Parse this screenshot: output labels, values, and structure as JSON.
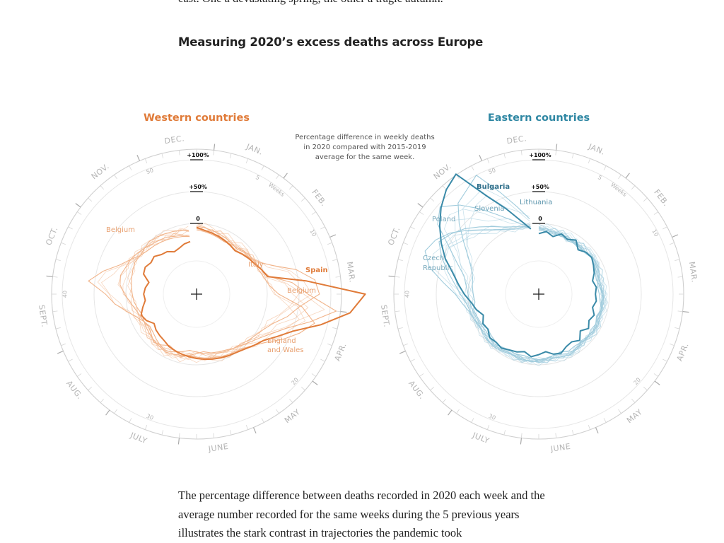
{
  "article": {
    "intro_fragment": "east. One a devastating spring, the other a tragic autumn.",
    "graphic_title": "Measuring 2020’s excess deaths across Europe",
    "body_text": "The percentage difference between deaths recorded in 2020 each week and the average number recorded for the same weeks during the 5 previous years illustrates the stark contrast in trajectories the pandemic took"
  },
  "colors": {
    "western": "#e07b39",
    "western_light": "#f1b48a",
    "eastern": "#3a8aa8",
    "eastern_light": "#9fcbdc",
    "grid": "#e6e6e6",
    "axis_ring": "#cfcfcf"
  },
  "chart_data": [
    {
      "type": "radial-line",
      "panel": "western",
      "title": "Western countries",
      "note": [
        "Percentage difference in weekly deaths",
        "in 2020 compared with 2015-2019",
        "average for the same week."
      ],
      "reference_rings": [
        {
          "value": 0,
          "label": "0"
        },
        {
          "value": 50,
          "label": "+50%"
        },
        {
          "value": 100,
          "label": "+100%"
        }
      ],
      "radial_scale": {
        "min": -100,
        "max": 150
      },
      "week_ticks": [
        5,
        10,
        20,
        30,
        40,
        50
      ],
      "month_labels": [
        "JAN.",
        "FEB.",
        "MAR.",
        "APR.",
        "MAY",
        "JUNE",
        "JULY",
        "AUG.",
        "SEPT.",
        "OCT.",
        "NOV.",
        "DEC."
      ],
      "week_axis_label": "Weeks",
      "x_label": "",
      "y_label": "",
      "highlighted": [
        {
          "name": "Spain",
          "values": [
            -6,
            -10,
            -12,
            -14,
            -16,
            -18,
            -20,
            -16,
            -12,
            -8,
            -2,
            4,
            62,
            154,
            132,
            90,
            52,
            32,
            17,
            10,
            4,
            0,
            -2,
            -4,
            -6,
            -8,
            -10,
            -12,
            -14,
            -16,
            -18,
            -22,
            -24,
            -26,
            -30,
            -22,
            -18,
            -24,
            -30,
            -28,
            -30,
            -34,
            -22,
            -20,
            -24,
            -22,
            -28,
            -30,
            -36,
            -34,
            -30,
            -28
          ]
        }
      ],
      "series": [
        {
          "name": "Italy",
          "values": [
            -8,
            -10,
            -12,
            -13,
            -15,
            -17,
            -19,
            -15,
            -10,
            -2,
            16,
            50,
            76,
            82,
            52,
            36,
            18,
            8,
            2,
            -2,
            -6,
            -8,
            -10,
            -12,
            -14,
            -17,
            -20,
            -22,
            -18,
            -14,
            -10,
            -12,
            -16,
            -20,
            -22,
            -18,
            -16,
            -12,
            -6,
            2,
            10,
            12,
            8,
            6,
            2,
            -2,
            -6,
            -8,
            -10,
            -14,
            -16,
            -18
          ]
        },
        {
          "name": "Belgium",
          "values": [
            -10,
            -12,
            -14,
            -16,
            -18,
            -16,
            -14,
            -10,
            -8,
            -6,
            -2,
            6,
            40,
            64,
            110,
            72,
            40,
            22,
            10,
            2,
            -4,
            -8,
            -12,
            -14,
            -16,
            -20,
            -18,
            -14,
            -10,
            -16,
            -20,
            -14,
            -10,
            -16,
            -20,
            -18,
            -10,
            2,
            18,
            32,
            60,
            40,
            18,
            6,
            -4,
            -8,
            -10,
            -12,
            -14,
            -16,
            -18,
            -20
          ]
        },
        {
          "name": "England and Wales",
          "values": [
            -4,
            -6,
            -8,
            -10,
            -12,
            -14,
            -16,
            -12,
            -10,
            -8,
            -6,
            -2,
            4,
            18,
            56,
            80,
            62,
            42,
            22,
            10,
            2,
            -2,
            -4,
            -6,
            -8,
            -10,
            -12,
            -14,
            -12,
            -10,
            -8,
            -10,
            -12,
            -14,
            -16,
            -18,
            -20,
            -16,
            -12,
            -10,
            -8,
            -6,
            -4,
            -2,
            -4,
            -2,
            0,
            -2,
            -4,
            -6,
            -8,
            -10
          ]
        }
      ],
      "annotations": [
        {
          "text": "Spain",
          "bold": true
        },
        {
          "text": "Italy"
        },
        {
          "text": "Belgium"
        },
        {
          "text": "Belgium"
        },
        {
          "text": "England"
        },
        {
          "text": "and Wales"
        }
      ]
    },
    {
      "type": "radial-line",
      "panel": "eastern",
      "title": "Eastern countries",
      "reference_rings": [
        {
          "value": 0,
          "label": "0"
        },
        {
          "value": 50,
          "label": "+50%"
        },
        {
          "value": 100,
          "label": "+100%"
        }
      ],
      "radial_scale": {
        "min": -100,
        "max": 150
      },
      "week_ticks": [
        5,
        10,
        20,
        30,
        40,
        50
      ],
      "month_labels": [
        "JAN.",
        "FEB.",
        "MAR.",
        "APR.",
        "MAY",
        "JUNE",
        "JULY",
        "AUG.",
        "SEPT.",
        "OCT.",
        "NOV.",
        "DEC."
      ],
      "week_axis_label": "Weeks",
      "x_label": "",
      "y_label": "",
      "highlighted": [
        {
          "name": "Bulgaria",
          "values": [
            -16,
            -12,
            -18,
            -10,
            -14,
            -8,
            -18,
            -12,
            -10,
            -14,
            -18,
            -24,
            -20,
            -22,
            -20,
            -24,
            -18,
            -22,
            -16,
            -24,
            -14,
            -20,
            -18,
            -12,
            -14,
            -20,
            -16,
            -12,
            -18,
            -14,
            -12,
            -8,
            -10,
            -8,
            -14,
            -12,
            -18,
            -10,
            -4,
            6,
            16,
            28,
            46,
            62,
            78,
            94,
            108,
            118,
            62,
            32,
            8,
            -8
          ]
        }
      ],
      "series": [
        {
          "name": "Lithuania",
          "values": [
            -10,
            -12,
            -14,
            -12,
            -16,
            -14,
            -12,
            -14,
            -10,
            -12,
            -16,
            -18,
            -14,
            -10,
            -12,
            -10,
            -14,
            -10,
            -12,
            -8,
            -10,
            -12,
            -10,
            -14,
            -12,
            -10,
            -8,
            -10,
            -12,
            -10,
            -12,
            -8,
            -10,
            -12,
            -14,
            -10,
            -8,
            -6,
            -10,
            -8,
            -6,
            -4,
            2,
            14,
            32,
            56,
            80,
            88,
            100,
            60,
            30,
            8
          ]
        },
        {
          "name": "Slovenia",
          "values": [
            -8,
            -10,
            -12,
            -14,
            -12,
            -14,
            -16,
            -12,
            -10,
            -12,
            -14,
            -16,
            -18,
            -16,
            -14,
            -10,
            -12,
            -10,
            -8,
            -10,
            -12,
            -8,
            -6,
            -10,
            -12,
            -8,
            -6,
            -10,
            -8,
            -10,
            -12,
            -10,
            -6,
            -8,
            -10,
            -8,
            -6,
            -4,
            -2,
            0,
            4,
            10,
            26,
            48,
            82,
            96,
            76,
            52,
            30,
            14,
            2,
            -4
          ]
        },
        {
          "name": "Poland",
          "values": [
            -6,
            -8,
            -10,
            -12,
            -10,
            -12,
            -14,
            -12,
            -10,
            -8,
            -10,
            -12,
            -14,
            -12,
            -10,
            -8,
            -10,
            -8,
            -6,
            -8,
            -10,
            -6,
            -4,
            -6,
            -8,
            -6,
            -4,
            -6,
            -4,
            -6,
            -8,
            -6,
            -4,
            -2,
            -4,
            -6,
            -2,
            2,
            10,
            20,
            40,
            66,
            80,
            72,
            58,
            40,
            24,
            12,
            4,
            -2,
            -4,
            -6
          ]
        },
        {
          "name": "Czech Republic",
          "values": [
            -8,
            -10,
            -12,
            -10,
            -14,
            -12,
            -10,
            -12,
            -8,
            -10,
            -12,
            -14,
            -12,
            -10,
            -8,
            -10,
            -8,
            -6,
            -8,
            -10,
            -8,
            -6,
            -4,
            -6,
            -8,
            -10,
            -6,
            -4,
            -6,
            -8,
            -6,
            -4,
            -2,
            -4,
            -6,
            -4,
            -2,
            0,
            4,
            12,
            22,
            36,
            52,
            66,
            56,
            44,
            30,
            18,
            8,
            2,
            -2,
            -4
          ]
        }
      ],
      "annotations": [
        {
          "text": "Bulgaria",
          "bold": true
        },
        {
          "text": "Lithuania"
        },
        {
          "text": "Slovenia"
        },
        {
          "text": "Poland"
        },
        {
          "text": "Czech"
        },
        {
          "text": "Republic"
        }
      ]
    }
  ]
}
